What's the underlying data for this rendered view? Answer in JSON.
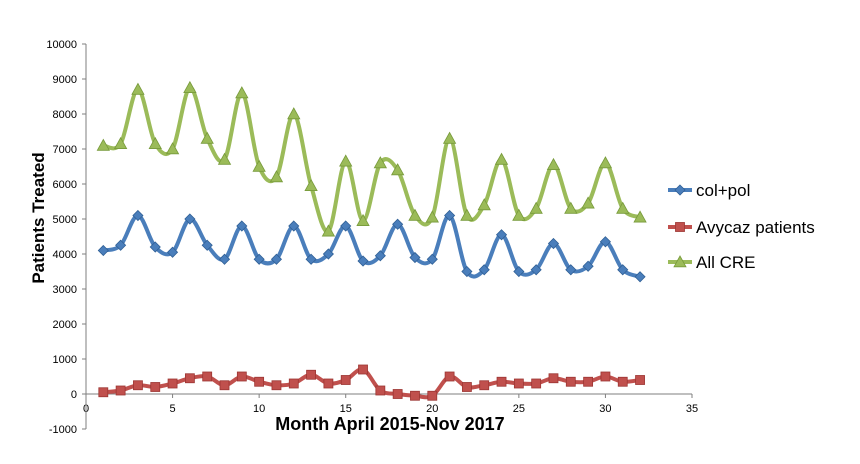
{
  "chart_data": {
    "type": "line",
    "title": "",
    "xlabel": "Month April 2015-Nov 2017",
    "ylabel": "Patients Treated",
    "xlim": [
      0,
      35
    ],
    "ylim": [
      -1000,
      10000
    ],
    "xticks": [
      0,
      5,
      10,
      15,
      20,
      25,
      30,
      35
    ],
    "yticks": [
      -1000,
      0,
      1000,
      2000,
      3000,
      4000,
      5000,
      6000,
      7000,
      8000,
      9000,
      10000
    ],
    "grid": false,
    "legend_position": "right",
    "x": [
      1,
      2,
      3,
      4,
      5,
      6,
      7,
      8,
      9,
      10,
      11,
      12,
      13,
      14,
      15,
      16,
      17,
      18,
      19,
      20,
      21,
      22,
      23,
      24,
      25,
      26,
      27,
      28,
      29,
      30,
      31,
      32
    ],
    "series": [
      {
        "name": "col+pol",
        "color": "#4a7ebb",
        "marker": "diamond",
        "values": [
          4100,
          4250,
          5100,
          4200,
          4050,
          5000,
          4250,
          3850,
          4800,
          3850,
          3850,
          4800,
          3850,
          4000,
          4800,
          3800,
          3950,
          4850,
          3900,
          3850,
          5100,
          3500,
          3550,
          4550,
          3500,
          3550,
          4300,
          3550,
          3650,
          4350,
          3550,
          3350
        ]
      },
      {
        "name": "Avycaz patients",
        "color": "#c0504d",
        "marker": "square",
        "values": [
          50,
          100,
          250,
          200,
          300,
          450,
          500,
          250,
          500,
          350,
          250,
          300,
          550,
          300,
          400,
          700,
          100,
          0,
          -50,
          -50,
          500,
          200,
          250,
          350,
          300,
          300,
          450,
          350,
          350,
          500,
          350,
          400
        ]
      },
      {
        "name": "All CRE",
        "color": "#9bbb59",
        "marker": "triangle",
        "values": [
          7100,
          7150,
          8700,
          7150,
          7000,
          8750,
          7300,
          6700,
          8600,
          6500,
          6200,
          8000,
          5950,
          4650,
          6650,
          4950,
          6600,
          6400,
          5100,
          5050,
          7300,
          5100,
          5400,
          6700,
          5100,
          5300,
          6550,
          5300,
          5450,
          6600,
          5300,
          5050
        ]
      }
    ]
  }
}
